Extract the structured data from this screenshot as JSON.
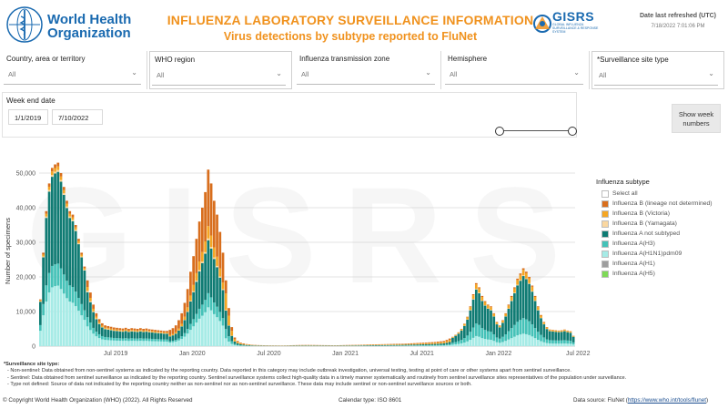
{
  "header": {
    "org_name": "World Health Organization",
    "title": "INFLUENZA LABORATORY SURVEILLANCE INFORMATION",
    "subtitle": "Virus detections by subtype reported to FluNet",
    "gisrs_word": "GISRS",
    "gisrs_tagline": "GLOBAL INFLUENZA SURVEILLANCE & RESPONSE SYSTEM",
    "refresh_label": "Date last refreshed (UTC)",
    "refresh_value": "7/18/2022 7:01:06 PM"
  },
  "filters": [
    {
      "label": "Country, area or territory",
      "value": "All"
    },
    {
      "label": "WHO region",
      "value": "All"
    },
    {
      "label": "Influenza transmission zone",
      "value": "All"
    },
    {
      "label": "Hemisphere",
      "value": "All"
    },
    {
      "label": "*Surveillance site type",
      "value": "All"
    }
  ],
  "date_filter": {
    "label": "Week end date",
    "start": "1/1/2019",
    "end": "7/10/2022"
  },
  "show_week_button": "Show week numbers",
  "legend": {
    "title": "Influenza subtype",
    "items": [
      {
        "label": "Select all",
        "color": "#ffffff"
      },
      {
        "label": "Influenza B (lineage not determined)",
        "color": "#d86e1d"
      },
      {
        "label": "Influenza B (Victoria)",
        "color": "#f5a623"
      },
      {
        "label": "Influenza B (Yamagata)",
        "color": "#fad7a0"
      },
      {
        "label": "Influenza A not subtyped",
        "color": "#0f7b73"
      },
      {
        "label": "Influenza A(H3)",
        "color": "#45c2b8"
      },
      {
        "label": "Influenza A(H1N1)pdm09",
        "color": "#a6ebe6"
      },
      {
        "label": "Influenza A(H1)",
        "color": "#9e9e9e"
      },
      {
        "label": "Influenza A(H5)",
        "color": "#7ed957"
      }
    ]
  },
  "chart_data": {
    "type": "bar",
    "stacked": true,
    "ylabel": "Number of specimens",
    "ylim": [
      0,
      55000
    ],
    "yticks": [
      0,
      10000,
      20000,
      30000,
      40000,
      50000
    ],
    "ytick_labels": [
      "0",
      "10,000",
      "20,000",
      "30,000",
      "40,000",
      "50,000"
    ],
    "xtick_labels": [
      "Jul 2019",
      "Jan 2020",
      "Jul 2020",
      "Jan 2021",
      "Jul 2021",
      "Jan 2022",
      "Jul 2022"
    ],
    "xtick_weeks": [
      26,
      52,
      78,
      104,
      130,
      156,
      183
    ],
    "watermark": "GISRS",
    "week_start": "2019-01-06",
    "series_keys": [
      "h1n1",
      "h3",
      "a_ns",
      "b_yam",
      "b_vic",
      "b_nd"
    ],
    "series_colors": {
      "h1n1": "#a6ebe6",
      "h3": "#45c2b8",
      "a_ns": "#0f7b73",
      "b_yam": "#fad7a0",
      "b_vic": "#f5a623",
      "b_nd": "#d86e1d"
    },
    "totals": [
      13500,
      27000,
      39000,
      47000,
      51500,
      52500,
      53000,
      50000,
      46000,
      42000,
      39000,
      38000,
      35000,
      31000,
      27000,
      23000,
      19000,
      15500,
      12000,
      9500,
      7800,
      6600,
      6000,
      5800,
      5600,
      5400,
      5300,
      5200,
      5100,
      5300,
      5000,
      5200,
      5100,
      5000,
      5200,
      5000,
      5100,
      4900,
      4800,
      4700,
      4600,
      4500,
      4400,
      4400,
      4700,
      5200,
      6000,
      7500,
      9500,
      12500,
      16500,
      21500,
      26000,
      31000,
      36000,
      40000,
      44500,
      51000,
      47000,
      42000,
      38000,
      33000,
      27000,
      19000,
      11000,
      5500,
      2500,
      1500,
      1000,
      800,
      600,
      500,
      400,
      350,
      300,
      280,
      250,
      230,
      220,
      210,
      200,
      190,
      180,
      200,
      220,
      250,
      280,
      300,
      320,
      330,
      340,
      350,
      330,
      320,
      310,
      300,
      290,
      280,
      270,
      260,
      250,
      260,
      280,
      300,
      320,
      340,
      360,
      380,
      400,
      420,
      440,
      460,
      480,
      500,
      520,
      540,
      560,
      580,
      600,
      620,
      640,
      660,
      680,
      700,
      740,
      780,
      820,
      860,
      900,
      950,
      1000,
      1050,
      1100,
      1150,
      1200,
      1300,
      1400,
      1500,
      1800,
      2200,
      2700,
      3300,
      4000,
      5000,
      6500,
      8500,
      11500,
      15000,
      18200,
      17000,
      14500,
      13000,
      12000,
      11500,
      9500,
      7000,
      6000,
      7500,
      9500,
      12000,
      14500,
      17000,
      19500,
      21000,
      22500,
      21500,
      20000,
      17500,
      14500,
      11500,
      9000,
      7000,
      5500,
      4800,
      4700,
      4600,
      4500,
      4600,
      4800,
      4500,
      4300,
      3000
    ],
    "shares": [
      {
        "until_week": 16,
        "h1n1": 0.33,
        "h3": 0.12,
        "a_ns": 0.5,
        "b_yam": 0.01,
        "b_vic": 0.02,
        "b_nd": 0.02
      },
      {
        "until_week": 44,
        "h1n1": 0.3,
        "h3": 0.14,
        "a_ns": 0.38,
        "b_yam": 0.02,
        "b_vic": 0.06,
        "b_nd": 0.1
      },
      {
        "until_week": 63,
        "h1n1": 0.22,
        "h3": 0.08,
        "a_ns": 0.3,
        "b_yam": 0.01,
        "b_vic": 0.07,
        "b_nd": 0.32
      },
      {
        "until_week": 140,
        "h1n1": 0.12,
        "h3": 0.14,
        "a_ns": 0.28,
        "b_yam": 0.01,
        "b_vic": 0.25,
        "b_nd": 0.2
      },
      {
        "until_week": 186,
        "h1n1": 0.16,
        "h3": 0.2,
        "a_ns": 0.54,
        "b_yam": 0.01,
        "b_vic": 0.07,
        "b_nd": 0.02
      }
    ]
  },
  "notes": {
    "heading": "*Surveillance site type:",
    "items": [
      "- Non-sentinel: Data obtained from non-sentinel systems as indicated by the reporting country. Data reported in this category may include outbreak investigation, universal testing, testing at point of care or other systems apart from sentinel surveillance.",
      "- Sentinel: Data obtained from sentinel surveillance as indicated by the reporting country. Sentinel surveillance systems collect high-quality data in a timely manner systematically and routinely from sentinel surveillance sites representatives of the population under surveillance.",
      "- Type not defined: Source of data not indicated by the reporting country neither as non-sentinel nor as non-sentinel surveillance. These data may include sentinel or non-sentinel surveillance sources or both."
    ]
  },
  "footer": {
    "copyright": "© Copyright World Health Organization (WHO) (2022). All Rights Reserved",
    "calendar": "Calendar type: ISO 8601",
    "source_label": "Data source: FluNet (",
    "source_link": "https://www.who.int/tools/flunet",
    "source_close": ")"
  }
}
